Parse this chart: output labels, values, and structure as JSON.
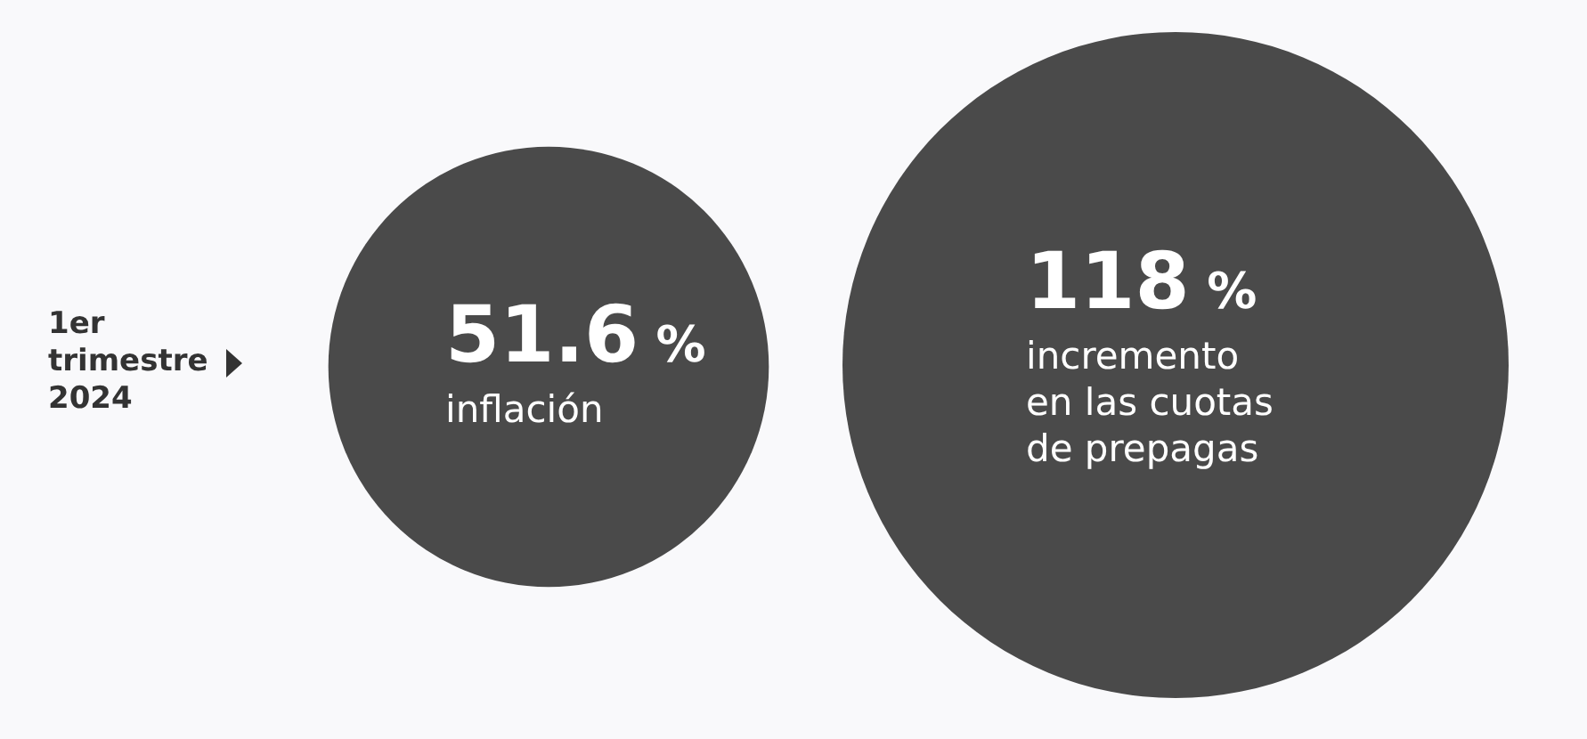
{
  "chart_data": {
    "type": "other",
    "categories": [
      "inflación",
      "incremento\nen las cuotas\nde prepagas"
    ],
    "values": [
      51.6,
      118
    ],
    "value_labels": [
      "51.6 %",
      "118 %"
    ],
    "color": "#4a4a4a",
    "annotations": [
      "1er\ntrimestre\n2024"
    ]
  }
}
